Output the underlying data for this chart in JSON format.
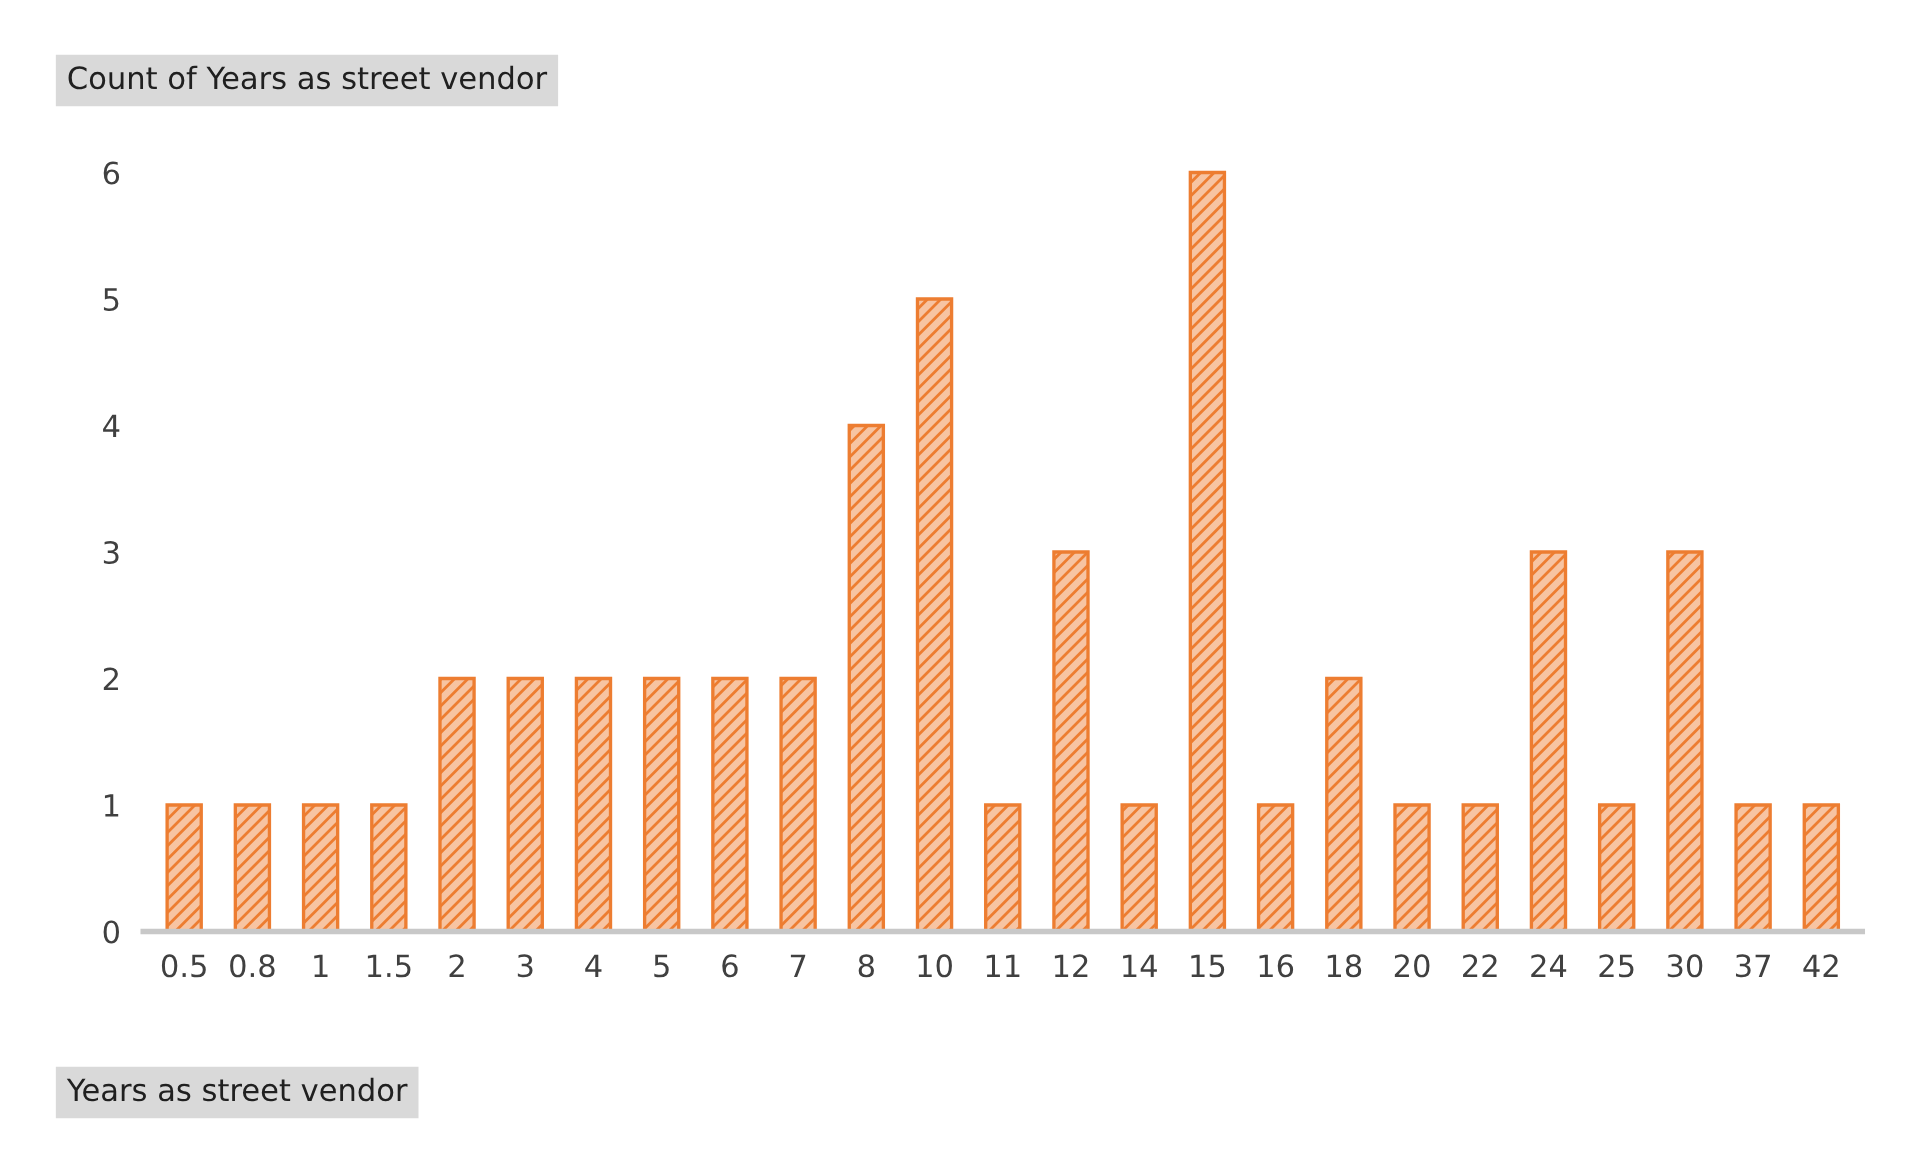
{
  "chart_data": {
    "type": "bar",
    "title": "Count of Years as street vendor",
    "xlabel": "Years as street vendor",
    "categories": [
      "0.5",
      "0.8",
      "1",
      "1.5",
      "2",
      "3",
      "4",
      "5",
      "6",
      "7",
      "8",
      "10",
      "11",
      "12",
      "14",
      "15",
      "16",
      "18",
      "20",
      "22",
      "24",
      "25",
      "30",
      "37",
      "42"
    ],
    "values": [
      1,
      1,
      1,
      1,
      2,
      2,
      2,
      2,
      2,
      2,
      4,
      5,
      1,
      3,
      1,
      6,
      1,
      2,
      1,
      1,
      3,
      1,
      3,
      1,
      1
    ],
    "color": "#ed7d31",
    "ylim": [
      0,
      6
    ],
    "yticks": [
      0,
      1,
      2,
      3,
      4,
      5,
      6
    ],
    "grid": false,
    "legend": false
  }
}
